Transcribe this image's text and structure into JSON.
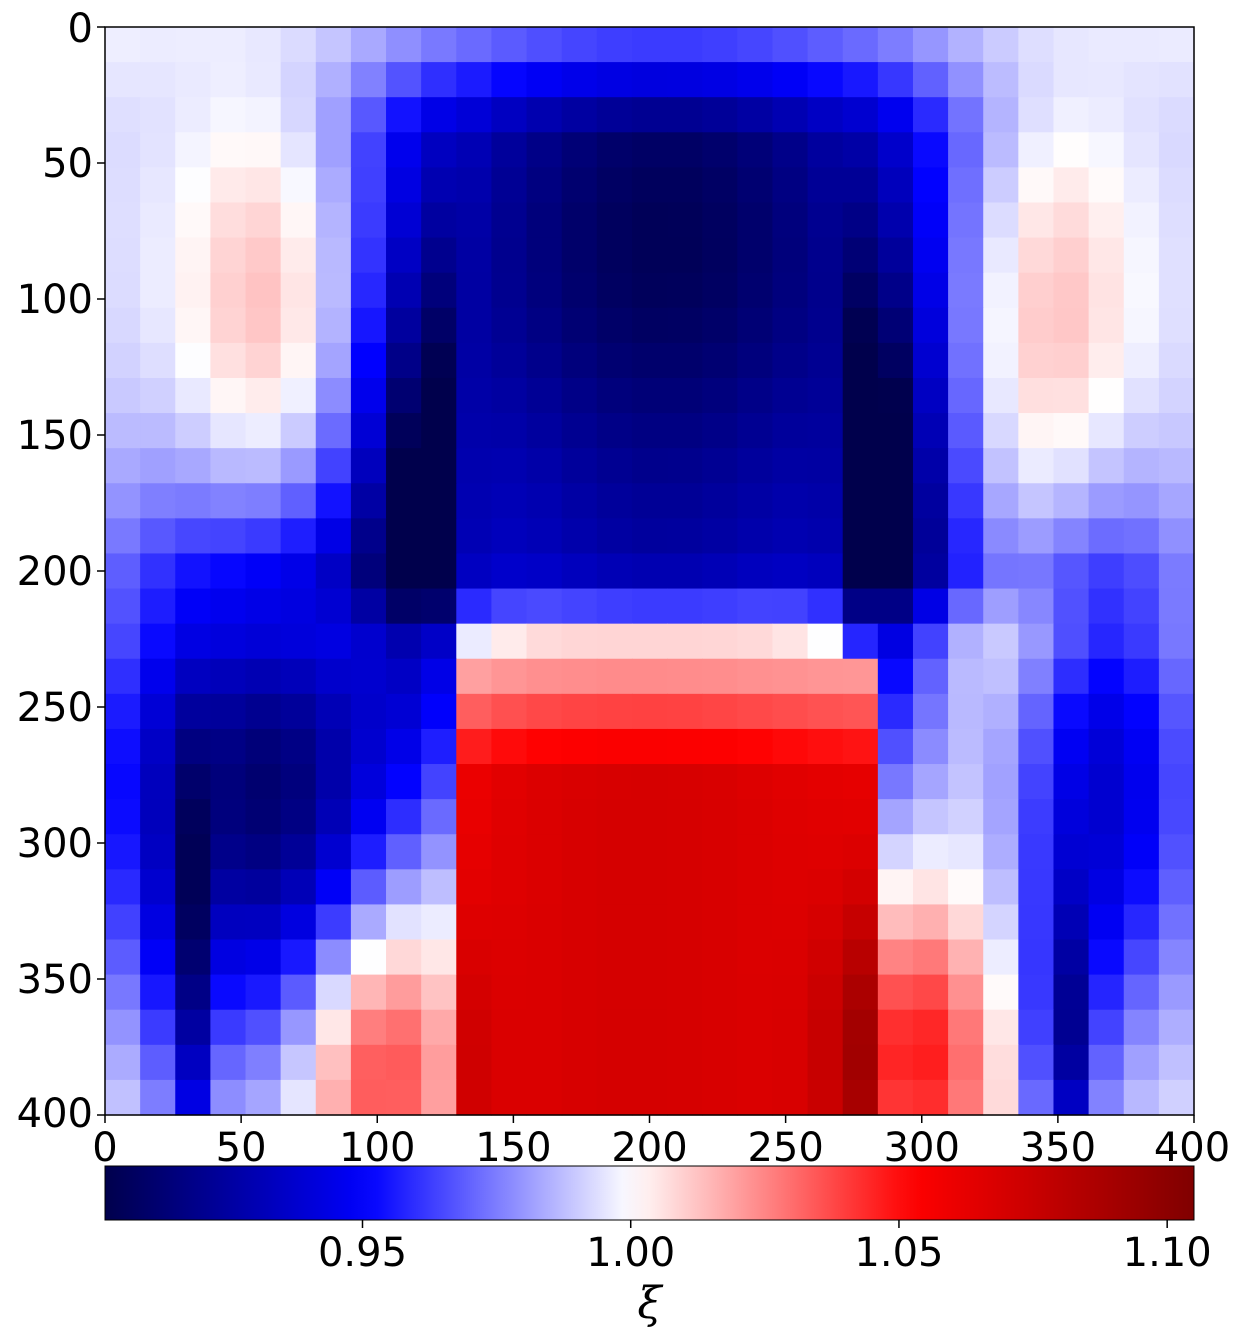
{
  "chart_data": {
    "type": "heatmap",
    "title": "",
    "xlabel": "",
    "ylabel": "",
    "x_range": [
      0,
      400
    ],
    "y_range": [
      0,
      400
    ],
    "y_inverted": true,
    "x_ticks": [
      "0",
      "50",
      "100",
      "150",
      "200",
      "250",
      "300",
      "350",
      "400"
    ],
    "y_ticks": [
      "0",
      "50",
      "100",
      "150",
      "200",
      "250",
      "300",
      "350",
      "400"
    ],
    "cell_size": 13,
    "grid": false,
    "colormap": "seismic",
    "colormap_stops": [
      "#00004c",
      "#0000ff",
      "#ffffff",
      "#ff0000",
      "#800000"
    ],
    "colorbar": {
      "orientation": "horizontal",
      "placement": "bottom",
      "label": "ξ",
      "range": [
        0.902,
        1.105
      ],
      "ticks": [
        {
          "value": 0.95,
          "label": "0.95"
        },
        {
          "value": 1.0,
          "label": "1.00"
        },
        {
          "value": 1.05,
          "label": "1.05"
        },
        {
          "value": 1.1,
          "label": "1.10"
        }
      ]
    },
    "profile_note": "field values on a 31x31 grid over x,y in [0,400]; approximated by the profile lists below",
    "profiles": {
      "central_top_min": 0.905,
      "central_bottom_max": 1.07,
      "side_lobe_max": 1.045,
      "side_trough_min": 0.93,
      "vertical_edge_ridge_x": [
        130,
        285
      ],
      "central_transition_y": 230
    }
  }
}
